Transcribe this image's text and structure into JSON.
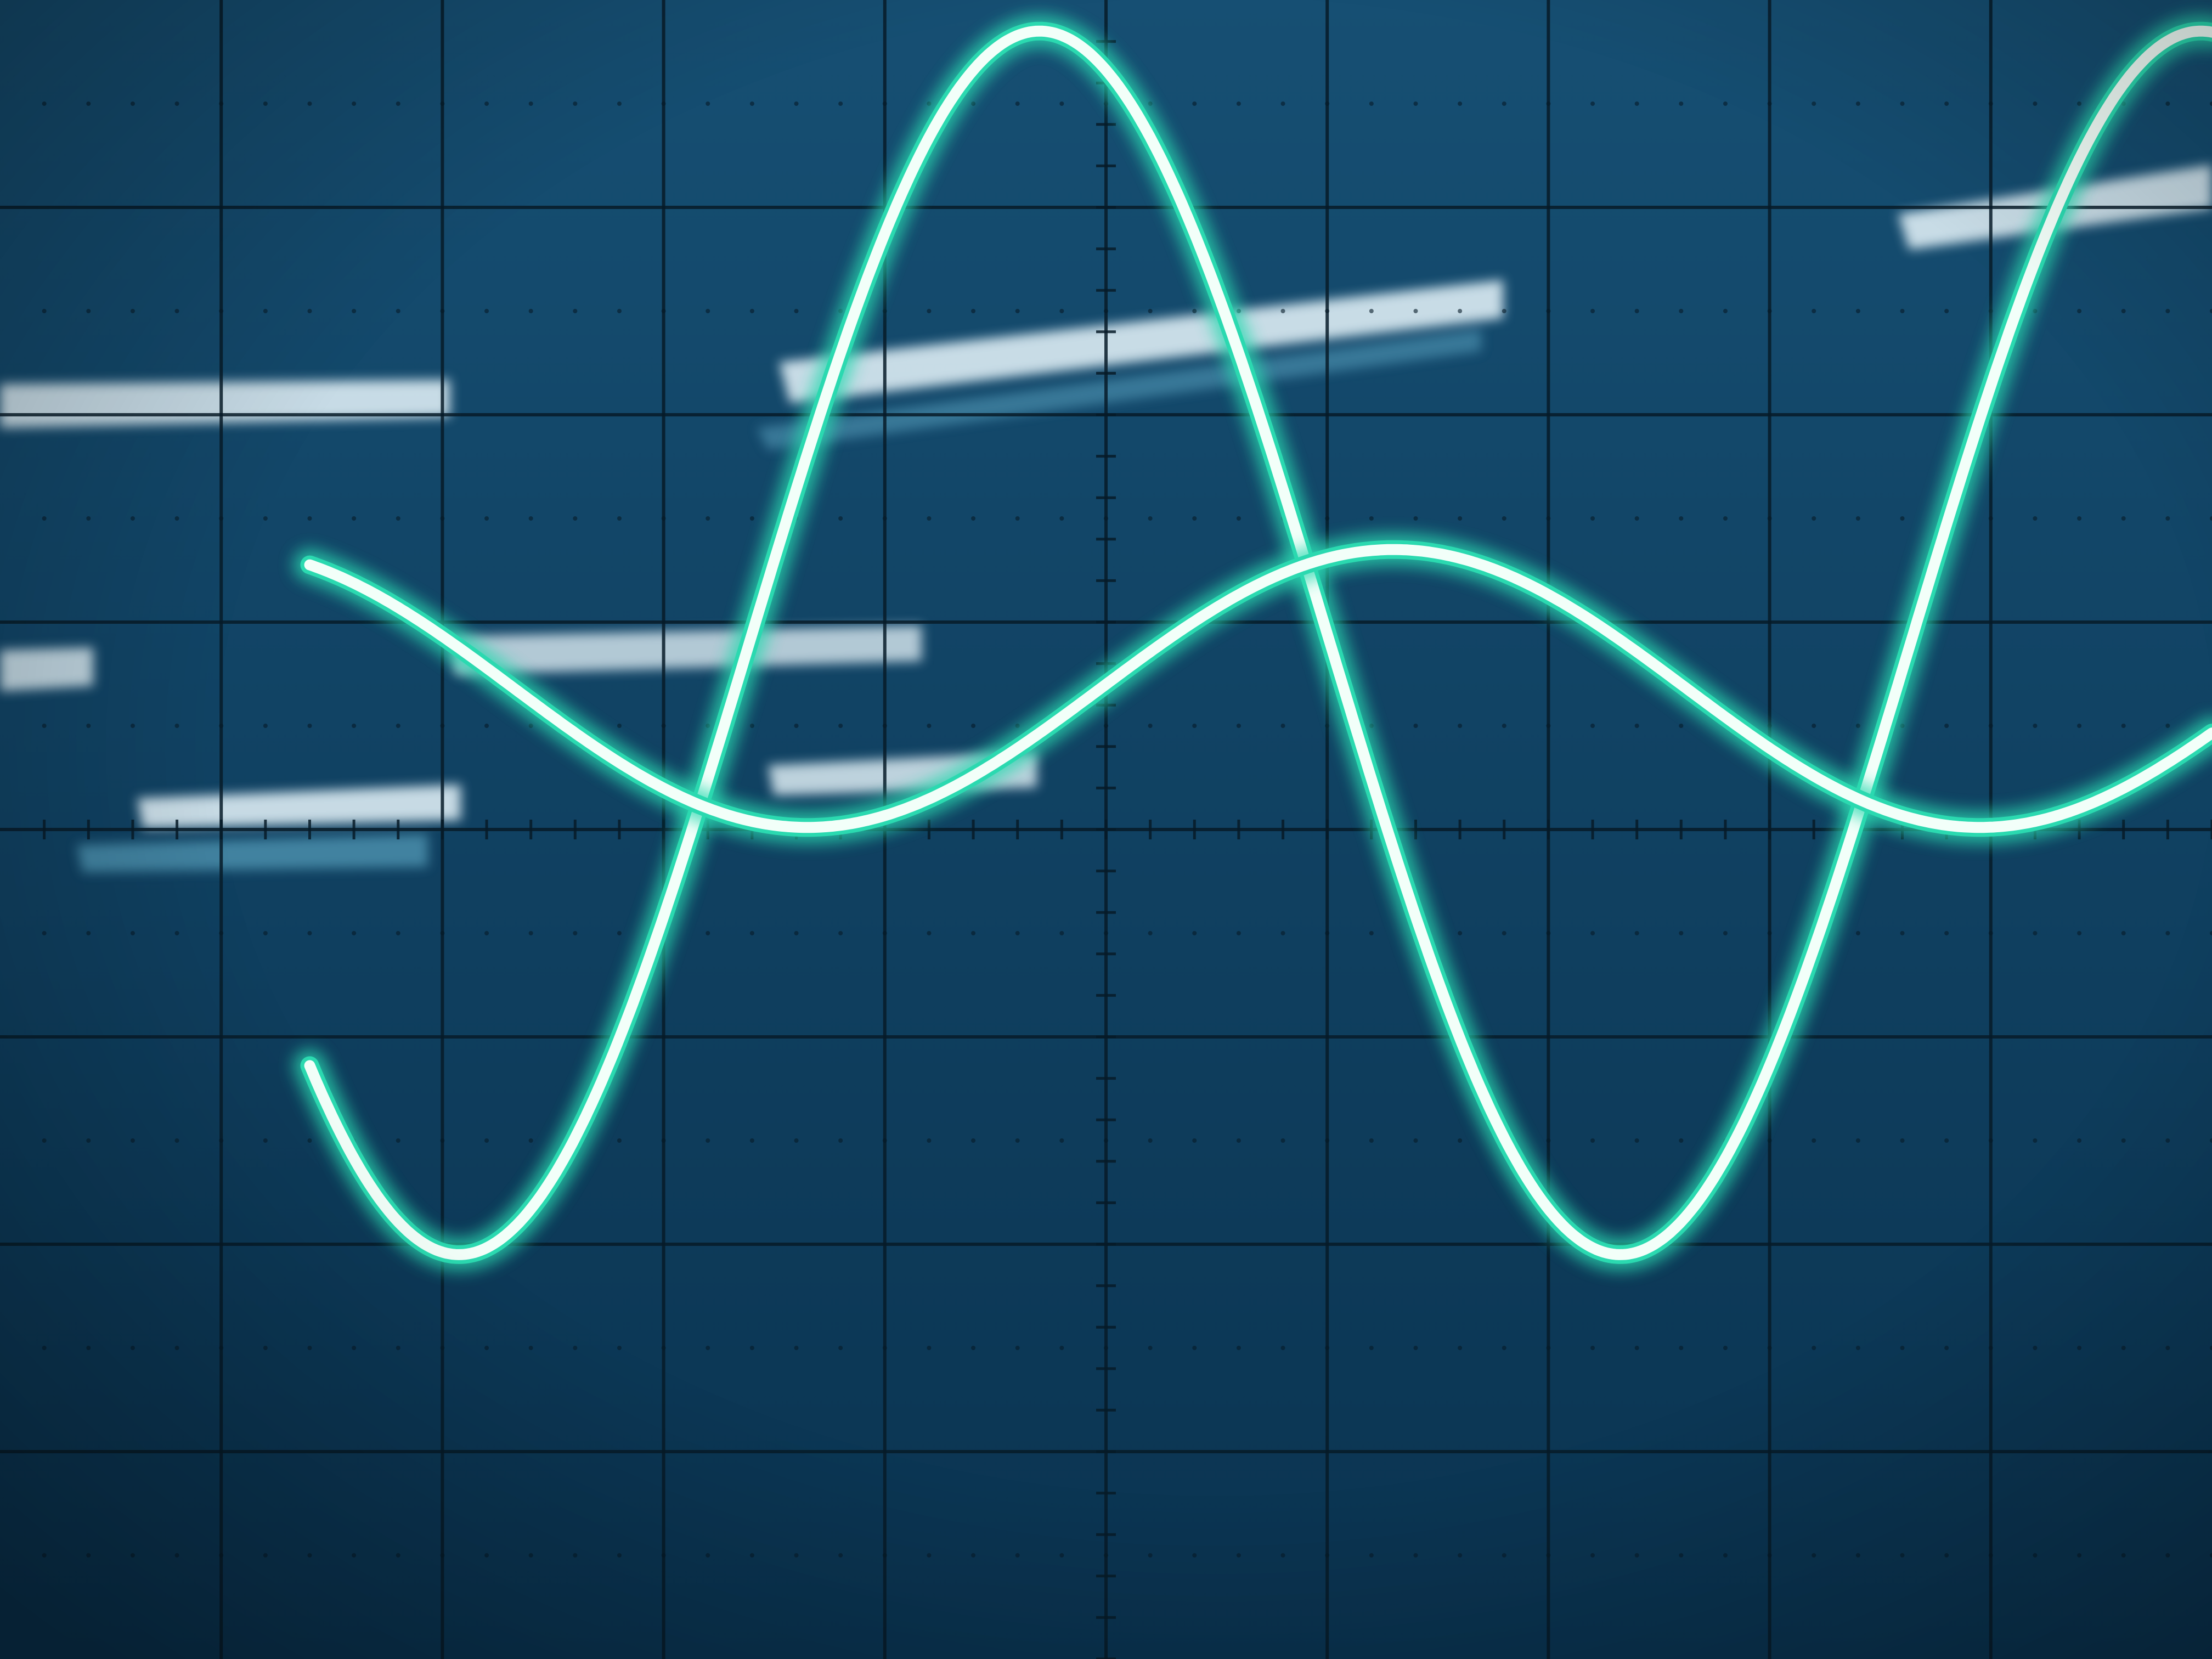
{
  "scene": {
    "subject": "oscilloscope-screen",
    "colors": {
      "screen_top": "#164f73",
      "screen_bottom": "#0a3350",
      "graticule": "#071b28",
      "trace_core": "#f2fff9",
      "trace_glow": "#2bd9b0",
      "reflection": "#e8f6fb",
      "reflection_glow": "#7fd2ee"
    }
  },
  "graticule": {
    "major_columns": 10,
    "major_rows": 8,
    "minor_ticks_per_division": 5,
    "center_axis_column": 5,
    "center_axis_row": 4
  },
  "chart_data": {
    "type": "line",
    "x_unit": "divisions",
    "y_unit": "divisions",
    "xlim": [
      0,
      10
    ],
    "ylim": [
      -4,
      4
    ],
    "series": [
      {
        "name": "large-sine-trace",
        "amplitude": 2.95,
        "offset": 0.9,
        "period": 5.25,
        "phase": -0.55,
        "x_start": 1.4,
        "x_end": 10.0
      },
      {
        "name": "small-sine-trace",
        "amplitude": 0.67,
        "offset": 0.68,
        "period": 5.3,
        "phase": 1.0,
        "x_start": 1.4,
        "x_end": 10.0
      }
    ]
  }
}
